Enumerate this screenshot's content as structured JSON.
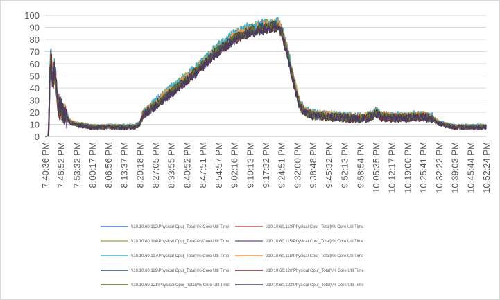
{
  "chart_data": {
    "type": "line",
    "title": "",
    "xlabel": "",
    "ylabel": "",
    "ylim": [
      0,
      100
    ],
    "yticks": [
      0,
      10,
      20,
      30,
      40,
      50,
      60,
      70,
      80,
      90,
      100
    ],
    "grid": {
      "horizontal": true,
      "vertical": false
    },
    "legend": "bottom",
    "x_tick_labels": [
      "7:40:36 PM",
      "7:46:52 PM",
      "7:53:32 PM",
      "8:00:17 PM",
      "8:06:56 PM",
      "8:13:37 PM",
      "8:20:18 PM",
      "8:27:05 PM",
      "8:33:55 PM",
      "8:40:52 PM",
      "8:47:51 PM",
      "8:54:57 PM",
      "9:02:16 PM",
      "9:10:13 PM",
      "9:17:32 PM",
      "9:24:51 PM",
      "9:32:00 PM",
      "9:38:48 PM",
      "9:45:32 PM",
      "9:52:13 PM",
      "9:58:54 PM",
      "10:05:35 PM",
      "10:12:17 PM",
      "10:19:00 PM",
      "10:25:41 PM",
      "10:32:22 PM",
      "10:39:03 PM",
      "10:45:44 PM",
      "10:52:24 PM"
    ],
    "profile": {
      "x": [
        0,
        0.15,
        0.22,
        0.26,
        0.3,
        0.34,
        0.38,
        0.42,
        0.48,
        0.6,
        0.8,
        1.2,
        1.6,
        2.0,
        3.0,
        4.0,
        5.0,
        5.6,
        6.0,
        6.2,
        6.6,
        7.0,
        8.0,
        9.0,
        10.0,
        11.0,
        12.0,
        13.0,
        14.0,
        14.8,
        15.0,
        15.4,
        15.8,
        16.2,
        16.6,
        17.0,
        18.0,
        19.0,
        20.0,
        20.8,
        21.0,
        21.3,
        22.0,
        23.0,
        24.0,
        24.6,
        25.0,
        25.6,
        26.0,
        28.0
      ],
      "y": [
        0,
        0,
        3,
        25,
        52,
        62,
        68,
        55,
        45,
        58,
        28,
        20,
        12,
        10,
        8,
        8,
        8,
        8,
        10,
        18,
        22,
        27,
        38,
        48,
        60,
        72,
        82,
        88,
        91,
        92,
        88,
        70,
        45,
        25,
        20,
        18,
        17,
        16,
        15,
        17,
        20,
        17,
        16,
        16,
        17,
        15,
        11,
        9,
        8,
        8
      ]
    },
    "series": [
      {
        "name": "\\\\10.10.60.112\\Physical Cpu(_Total)\\% Core Util Time",
        "color": "#4472c4",
        "offset": 0.0,
        "noise": 2.6,
        "seed": 11
      },
      {
        "name": "\\\\10.10.60.113\\Physical Cpu(_Total)\\% Core Util Time",
        "color": "#c0504d",
        "offset": 1.5,
        "noise": 2.4,
        "seed": 23
      },
      {
        "name": "\\\\10.10.60.114\\Physical Cpu(_Total)\\% Core Util Time",
        "color": "#9bbb59",
        "offset": 2.0,
        "noise": 2.6,
        "seed": 37
      },
      {
        "name": "\\\\10.10.60.115\\Physical Cpu(_Total)\\% Core Util Time",
        "color": "#8064a2",
        "offset": -1.0,
        "noise": 2.5,
        "seed": 41
      },
      {
        "name": "\\\\10.10.60.117\\Physical Cpu(_Total)\\% Core Util Time",
        "color": "#4bacc6",
        "offset": 2.5,
        "noise": 2.7,
        "seed": 53
      },
      {
        "name": "\\\\10.10.60.118\\Physical Cpu(_Total)\\% Core Util Time",
        "color": "#f79646",
        "offset": 0.5,
        "noise": 2.5,
        "seed": 67
      },
      {
        "name": "\\\\10.10.60.119\\Physical Cpu(_Total)\\% Core Util Time",
        "color": "#2c4d75",
        "offset": -0.5,
        "noise": 2.4,
        "seed": 71
      },
      {
        "name": "\\\\10.10.60.120\\Physical Cpu(_Total)\\% Core Util Time",
        "color": "#772c2a",
        "offset": -2.0,
        "noise": 2.6,
        "seed": 83
      },
      {
        "name": "\\\\10.10.60.121\\Physical Cpu(_Total)\\% Core Util Time",
        "color": "#5f7530",
        "offset": -1.5,
        "noise": 2.5,
        "seed": 97
      },
      {
        "name": "\\\\10.10.60.122\\Physical Cpu(_Total)\\% Core Util Time",
        "color": "#4d3b62",
        "offset": -3.0,
        "noise": 2.4,
        "seed": 103
      }
    ]
  }
}
